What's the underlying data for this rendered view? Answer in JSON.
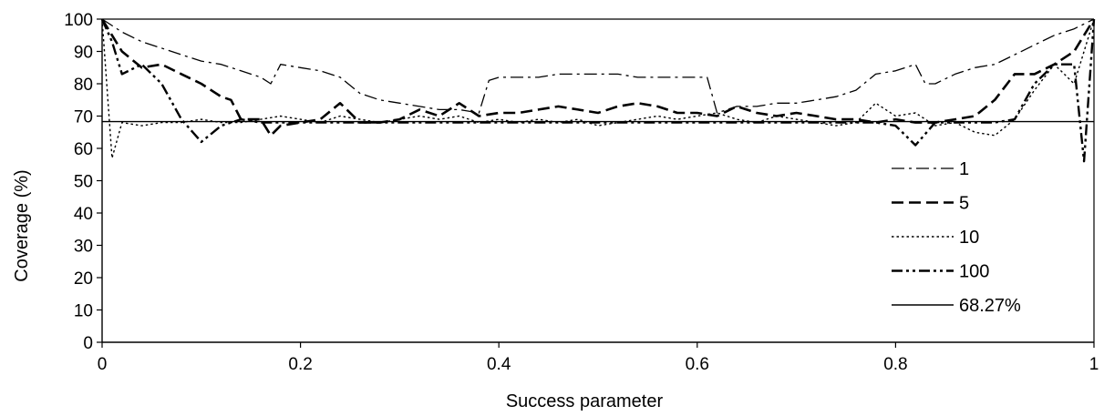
{
  "chart_data": {
    "type": "line",
    "title": "",
    "xlabel": "Success parameter",
    "ylabel": "Coverage (%)",
    "xlim": [
      0,
      1
    ],
    "ylim": [
      0,
      100
    ],
    "x_ticks": [
      "0",
      "0.2",
      "0.4",
      "0.6",
      "0.8",
      "1"
    ],
    "y_ticks": [
      "0",
      "10",
      "20",
      "30",
      "40",
      "50",
      "60",
      "70",
      "80",
      "90",
      "100"
    ],
    "grid": false,
    "legend_position": "right",
    "series": [
      {
        "name": "1",
        "style": "dash-dot",
        "x": [
          0,
          0.02,
          0.04,
          0.06,
          0.08,
          0.1,
          0.12,
          0.14,
          0.16,
          0.17,
          0.18,
          0.2,
          0.22,
          0.24,
          0.26,
          0.28,
          0.3,
          0.32,
          0.34,
          0.36,
          0.38,
          0.39,
          0.4,
          0.42,
          0.44,
          0.46,
          0.48,
          0.5,
          0.52,
          0.54,
          0.56,
          0.58,
          0.6,
          0.61,
          0.62,
          0.64,
          0.66,
          0.68,
          0.7,
          0.72,
          0.74,
          0.76,
          0.78,
          0.8,
          0.82,
          0.83,
          0.84,
          0.86,
          0.88,
          0.9,
          0.92,
          0.94,
          0.96,
          0.98,
          1.0
        ],
        "y": [
          100,
          96,
          93,
          91,
          89,
          87,
          86,
          84,
          82,
          80,
          86,
          85,
          84,
          82,
          77,
          75,
          74,
          73,
          72,
          72,
          71,
          81,
          82,
          82,
          82,
          83,
          83,
          83,
          83,
          82,
          82,
          82,
          82,
          82,
          71,
          73,
          73,
          74,
          74,
          75,
          76,
          78,
          83,
          84,
          86,
          80,
          80,
          83,
          85,
          86,
          89,
          92,
          95,
          97,
          100
        ]
      },
      {
        "name": "5",
        "style": "dash",
        "x": [
          0,
          0.02,
          0.04,
          0.06,
          0.08,
          0.1,
          0.12,
          0.13,
          0.14,
          0.16,
          0.17,
          0.18,
          0.2,
          0.22,
          0.24,
          0.26,
          0.28,
          0.3,
          0.32,
          0.34,
          0.36,
          0.38,
          0.4,
          0.42,
          0.44,
          0.46,
          0.48,
          0.5,
          0.52,
          0.54,
          0.56,
          0.58,
          0.6,
          0.62,
          0.64,
          0.66,
          0.68,
          0.7,
          0.72,
          0.74,
          0.76,
          0.78,
          0.8,
          0.82,
          0.84,
          0.86,
          0.88,
          0.9,
          0.92,
          0.94,
          0.96,
          0.98,
          1.0
        ],
        "y": [
          100,
          90,
          85,
          86,
          83,
          80,
          76,
          75,
          69,
          69,
          64,
          67,
          68,
          69,
          74,
          68,
          68,
          69,
          72,
          70,
          74,
          70,
          71,
          71,
          72,
          73,
          72,
          71,
          73,
          74,
          73,
          71,
          71,
          70,
          73,
          71,
          70,
          71,
          70,
          69,
          69,
          68,
          69,
          68,
          68,
          69,
          70,
          75,
          83,
          83,
          86,
          90,
          100
        ]
      },
      {
        "name": "10",
        "style": "dot",
        "x": [
          0,
          0.01,
          0.02,
          0.04,
          0.06,
          0.08,
          0.1,
          0.12,
          0.14,
          0.16,
          0.18,
          0.2,
          0.22,
          0.24,
          0.26,
          0.28,
          0.3,
          0.32,
          0.34,
          0.36,
          0.38,
          0.4,
          0.42,
          0.44,
          0.46,
          0.48,
          0.5,
          0.52,
          0.54,
          0.56,
          0.58,
          0.6,
          0.62,
          0.64,
          0.66,
          0.68,
          0.7,
          0.72,
          0.74,
          0.76,
          0.78,
          0.8,
          0.82,
          0.84,
          0.86,
          0.88,
          0.9,
          0.92,
          0.94,
          0.96,
          0.98,
          0.99,
          1.0
        ],
        "y": [
          100,
          57,
          68,
          67,
          68,
          68,
          69,
          68,
          68,
          69,
          70,
          69,
          68,
          70,
          69,
          68,
          69,
          70,
          69,
          70,
          68,
          69,
          68,
          69,
          68,
          69,
          67,
          68,
          69,
          70,
          69,
          70,
          71,
          69,
          68,
          70,
          69,
          68,
          67,
          68,
          74,
          70,
          71,
          67,
          68,
          65,
          64,
          69,
          78,
          86,
          80,
          90,
          100
        ]
      },
      {
        "name": "100",
        "style": "dash-dot-dot",
        "x": [
          0,
          0.01,
          0.02,
          0.04,
          0.06,
          0.08,
          0.1,
          0.12,
          0.14,
          0.16,
          0.18,
          0.2,
          0.22,
          0.24,
          0.26,
          0.28,
          0.3,
          0.32,
          0.34,
          0.36,
          0.38,
          0.4,
          0.42,
          0.44,
          0.46,
          0.48,
          0.5,
          0.52,
          0.54,
          0.56,
          0.58,
          0.6,
          0.62,
          0.64,
          0.66,
          0.68,
          0.7,
          0.72,
          0.74,
          0.76,
          0.78,
          0.8,
          0.82,
          0.84,
          0.86,
          0.88,
          0.9,
          0.92,
          0.94,
          0.96,
          0.98,
          0.99,
          1.0
        ],
        "y": [
          100,
          93,
          83,
          86,
          80,
          69,
          62,
          67,
          69,
          68,
          68,
          68,
          68,
          68,
          68,
          68,
          68,
          68,
          68,
          68,
          68,
          68,
          68,
          68,
          68,
          68,
          68,
          68,
          68,
          68,
          68,
          68,
          68,
          68,
          68,
          68,
          68,
          68,
          68,
          68,
          68,
          67,
          61,
          68,
          68,
          68,
          68,
          69,
          80,
          86,
          86,
          56,
          100
        ]
      },
      {
        "name": "68.27%",
        "style": "solid",
        "x": [
          0,
          1
        ],
        "y": [
          68.27,
          68.27
        ]
      }
    ]
  }
}
